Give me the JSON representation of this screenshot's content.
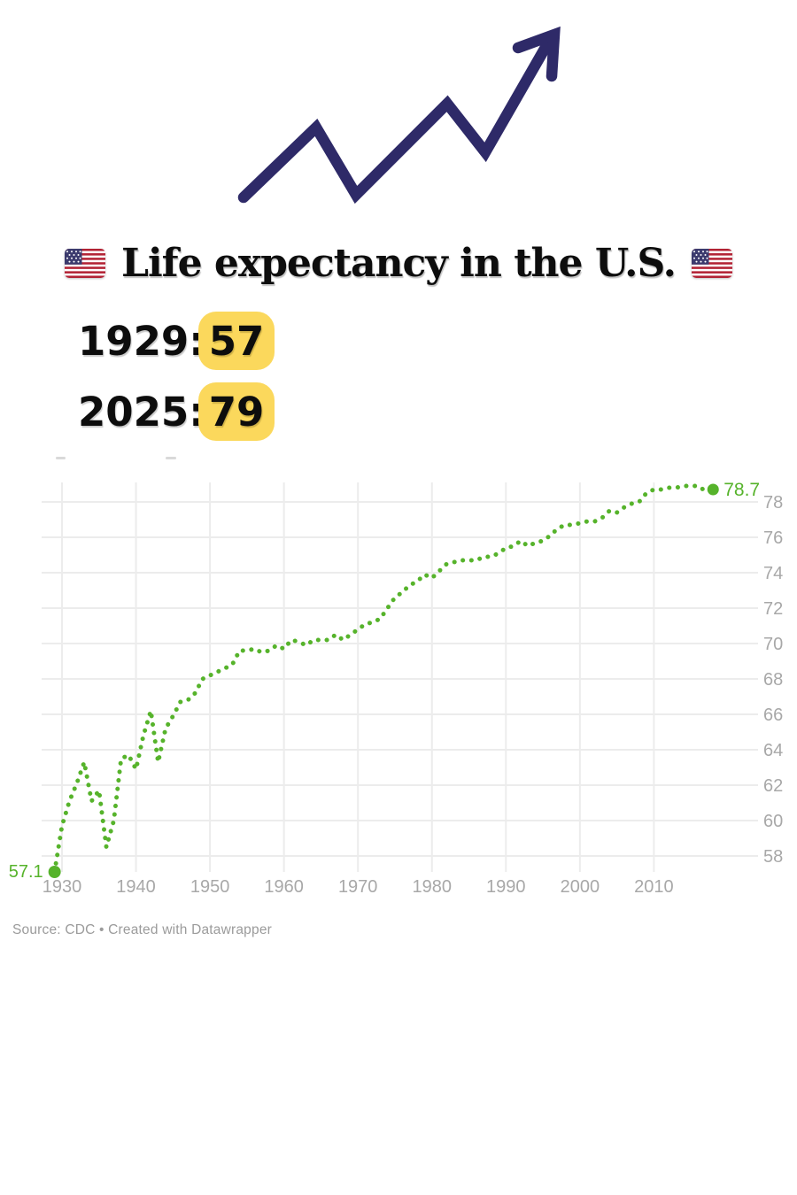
{
  "header": {
    "title": "Life expectancy in the U.S."
  },
  "stats": [
    {
      "label": "1929:",
      "value": "57"
    },
    {
      "label": "2025:",
      "value": "79"
    }
  ],
  "source": {
    "text": "Source: CDC • Created with Datawrapper"
  },
  "colors": {
    "arrow": "#2e2a68",
    "badge_yellow": "#FBD85C",
    "line_green": "#56b32b",
    "grid": "#ececec",
    "axis_label": "#a8a8a8",
    "title_text": "#0d0d0d",
    "source_text": "#9b9b9b",
    "flag_red": "#B22234",
    "flag_blue": "#3C3B6E"
  },
  "chart_data": {
    "type": "line",
    "style": "dotted",
    "title": "",
    "xlabel": "",
    "ylabel": "",
    "x": [
      1929,
      1930,
      1931,
      1932,
      1933,
      1934,
      1935,
      1936,
      1937,
      1938,
      1939,
      1940,
      1941,
      1942,
      1943,
      1944,
      1945,
      1946,
      1947,
      1948,
      1949,
      1950,
      1951,
      1952,
      1953,
      1954,
      1955,
      1956,
      1957,
      1958,
      1959,
      1960,
      1961,
      1962,
      1963,
      1964,
      1965,
      1966,
      1967,
      1968,
      1969,
      1970,
      1971,
      1972,
      1973,
      1974,
      1975,
      1976,
      1977,
      1978,
      1979,
      1980,
      1981,
      1982,
      1983,
      1984,
      1985,
      1986,
      1987,
      1988,
      1989,
      1990,
      1991,
      1992,
      1993,
      1994,
      1995,
      1996,
      1997,
      1998,
      1999,
      2000,
      2001,
      2002,
      2003,
      2004,
      2005,
      2006,
      2007,
      2008,
      2009,
      2010,
      2011,
      2012,
      2013,
      2014,
      2015,
      2016,
      2017,
      2018
    ],
    "values": [
      57.1,
      59.7,
      61.1,
      62.1,
      63.3,
      61.1,
      61.7,
      58.5,
      60.0,
      63.5,
      63.7,
      62.9,
      64.8,
      66.2,
      63.3,
      65.2,
      65.9,
      66.7,
      66.8,
      67.2,
      68.0,
      68.2,
      68.4,
      68.6,
      68.8,
      69.6,
      69.6,
      69.7,
      69.5,
      69.6,
      69.9,
      69.7,
      70.2,
      70.1,
      69.9,
      70.2,
      70.2,
      70.2,
      70.5,
      70.2,
      70.5,
      70.8,
      71.1,
      71.2,
      71.4,
      72.0,
      72.6,
      72.9,
      73.3,
      73.5,
      73.9,
      73.7,
      74.1,
      74.5,
      74.6,
      74.7,
      74.7,
      74.7,
      74.9,
      74.9,
      75.1,
      75.4,
      75.5,
      75.8,
      75.5,
      75.7,
      75.8,
      76.1,
      76.5,
      76.7,
      76.7,
      76.8,
      76.9,
      76.9,
      77.1,
      77.5,
      77.4,
      77.7,
      77.9,
      78.0,
      78.5,
      78.7,
      78.7,
      78.8,
      78.8,
      78.9,
      78.9,
      78.9,
      78.6,
      78.7
    ],
    "start_label": "57.1",
    "end_label": "78.7",
    "y_ticks": [
      58,
      60,
      62,
      64,
      66,
      68,
      70,
      72,
      74,
      76,
      78
    ],
    "x_ticks": [
      1930,
      1940,
      1950,
      1960,
      1970,
      1980,
      1990,
      2000,
      2010
    ],
    "xlim": [
      1929,
      2024
    ],
    "ylim": [
      57,
      79.5
    ],
    "grid": true,
    "legend": "none",
    "line_color": "#56b32b"
  }
}
